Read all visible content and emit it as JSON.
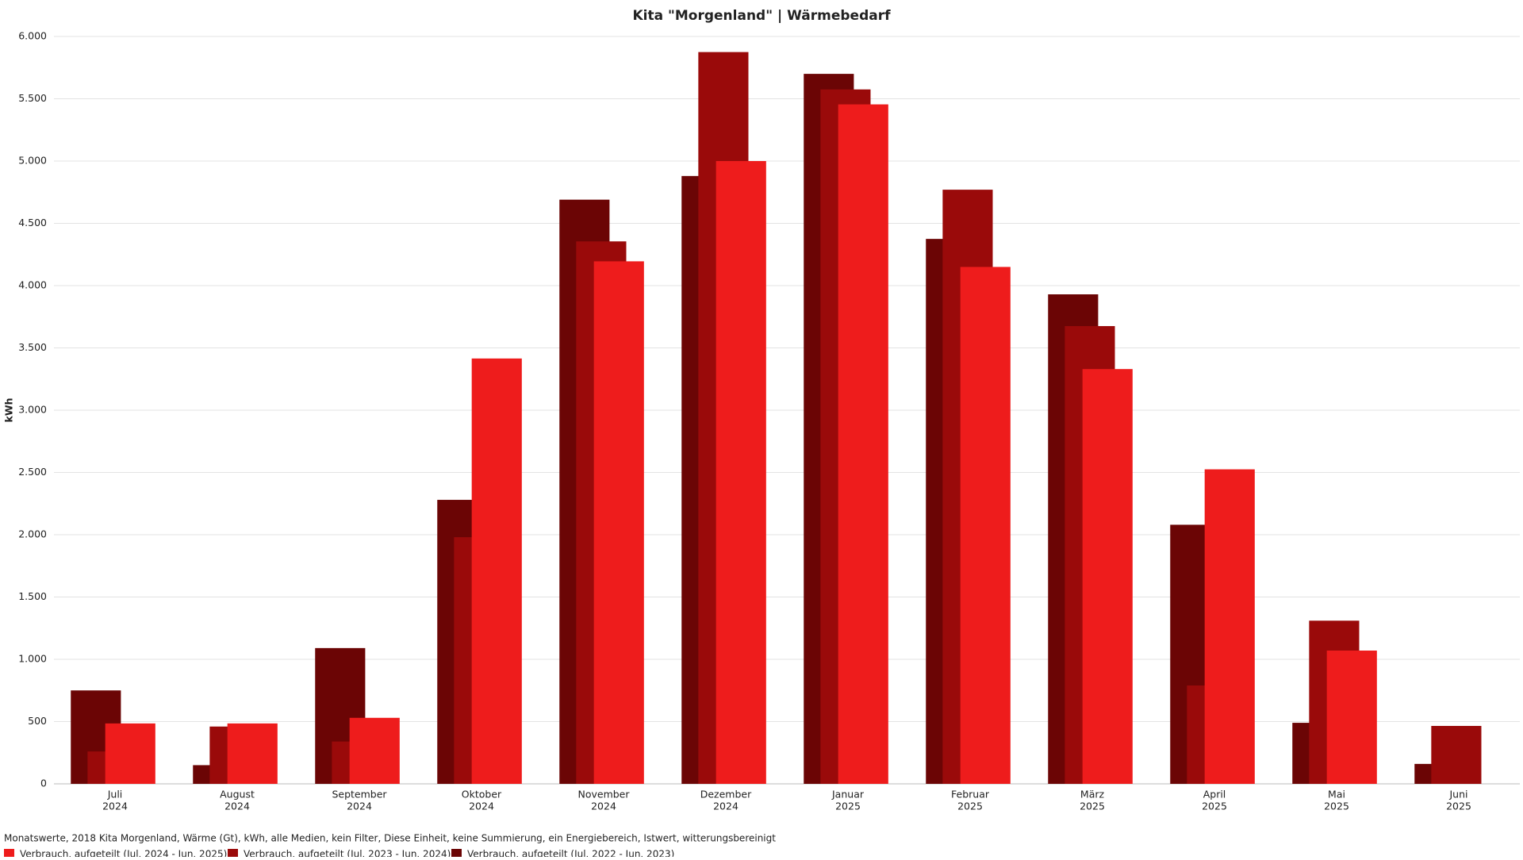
{
  "chart_data": {
    "type": "bar",
    "title": "Kita \"Morgenland\" | Wärmebedarf",
    "y_label": "kWh",
    "subtitle": "Monatswerte, 2018 Kita Morgenland, Wärme (Gt), kWh, alle Medien, kein Filter, Diese Einheit, keine Summierung, ein Energiebereich, Istwert, witterungsbereinigt",
    "categories": [
      [
        "Juli",
        "2024"
      ],
      [
        "August",
        "2024"
      ],
      [
        "September",
        "2024"
      ],
      [
        "Oktober",
        "2024"
      ],
      [
        "November",
        "2024"
      ],
      [
        "Dezember",
        "2024"
      ],
      [
        "Januar",
        "2025"
      ],
      [
        "Februar",
        "2025"
      ],
      [
        "März",
        "2025"
      ],
      [
        "April",
        "2025"
      ],
      [
        "Mai",
        "2025"
      ],
      [
        "Juni",
        "2025"
      ]
    ],
    "series": [
      {
        "name": "Verbrauch, aufgeteilt (Jul. 2024 - Jun. 2025)",
        "color": "#ee1c1c",
        "values": [
          485,
          485,
          530,
          3415,
          4195,
          5000,
          5455,
          4150,
          3330,
          2525,
          1070,
          null
        ]
      },
      {
        "name": "Verbrauch, aufgeteilt (Jul. 2023 - Jun. 2024)",
        "color": "#9a0a0a",
        "values": [
          260,
          460,
          340,
          1980,
          4355,
          5875,
          5575,
          4770,
          3675,
          790,
          1310,
          465
        ]
      },
      {
        "name": "Verbrauch, aufgeteilt (Jul. 2022 - Jun. 2023)",
        "color": "#6b0505",
        "values": [
          750,
          150,
          1090,
          2280,
          4690,
          4880,
          5700,
          4375,
          3930,
          2080,
          490,
          160
        ]
      }
    ],
    "ylim": [
      0,
      6000
    ],
    "yticks": [
      0,
      500,
      {
        "value": 1000,
        "label": "1.000"
      },
      {
        "value": 1500,
        "label": "1.500"
      },
      {
        "value": 2000,
        "label": "2.000"
      },
      {
        "value": 2500,
        "label": "2.500"
      },
      {
        "value": 3000,
        "label": "3.000"
      },
      {
        "value": 3500,
        "label": "3.500"
      },
      {
        "value": 4000,
        "label": "4.000"
      },
      {
        "value": 4500,
        "label": "4.500"
      },
      {
        "value": 5000,
        "label": "5.000"
      },
      {
        "value": 5500,
        "label": "5.500"
      },
      {
        "value": 6000,
        "label": "6.000"
      }
    ],
    "grid": true
  }
}
